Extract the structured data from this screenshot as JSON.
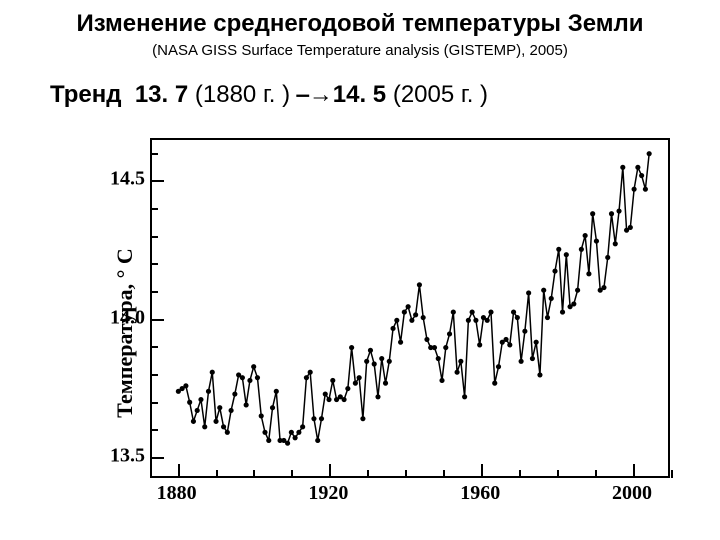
{
  "title": "Изменение среднегодовой температуры Земли",
  "subtitle": "(NASA GISS Surface Temperature analysis (GISTEMP), 2005)",
  "trend": {
    "label": "Тренд",
    "v1": "13. 7",
    "p1": "(1880 г. )",
    "arrow": "⎯→",
    "v2": "14. 5",
    "p2": "(2005 г. )"
  },
  "chart": {
    "type": "line",
    "ylabel": "Температура, ° С",
    "xlim": [
      1873,
      2010
    ],
    "ylim": [
      13.42,
      14.65
    ],
    "xticks_major": [
      1880,
      1920,
      1960,
      2000
    ],
    "xticks_minor": [
      1890,
      1900,
      1910,
      1930,
      1940,
      1950,
      1970,
      1980,
      1990,
      2010
    ],
    "yticks_major": [
      13.5,
      14.0,
      14.5
    ],
    "yticks_minor": [
      13.6,
      13.7,
      13.8,
      13.9,
      14.1,
      14.2,
      14.3,
      14.4,
      14.6
    ],
    "ytick_labels": [
      "13.5",
      "14.0",
      "14.5"
    ],
    "xtick_labels": [
      "1880",
      "1920",
      "1960",
      "2000"
    ],
    "line_color": "#000000",
    "marker_color": "#000000",
    "line_width": 1.5,
    "marker_radius": 2.6,
    "background_color": "#ffffff",
    "tick_fontsize": 20,
    "years": [
      1880,
      1881,
      1882,
      1883,
      1884,
      1885,
      1886,
      1887,
      1888,
      1889,
      1890,
      1891,
      1892,
      1893,
      1894,
      1895,
      1896,
      1897,
      1898,
      1899,
      1900,
      1901,
      1902,
      1903,
      1904,
      1905,
      1906,
      1907,
      1908,
      1909,
      1910,
      1911,
      1912,
      1913,
      1914,
      1915,
      1916,
      1917,
      1918,
      1919,
      1920,
      1921,
      1922,
      1923,
      1924,
      1925,
      1926,
      1927,
      1928,
      1929,
      1930,
      1931,
      1932,
      1933,
      1934,
      1935,
      1936,
      1937,
      1938,
      1939,
      1940,
      1941,
      1942,
      1943,
      1944,
      1945,
      1946,
      1947,
      1948,
      1949,
      1950,
      1951,
      1952,
      1953,
      1954,
      1955,
      1956,
      1957,
      1958,
      1959,
      1960,
      1961,
      1962,
      1963,
      1964,
      1965,
      1966,
      1967,
      1968,
      1969,
      1970,
      1971,
      1972,
      1973,
      1974,
      1975,
      1976,
      1977,
      1978,
      1979,
      1980,
      1981,
      1982,
      1983,
      1984,
      1985,
      1986,
      1987,
      1988,
      1989,
      1990,
      1991,
      1992,
      1993,
      1994,
      1995,
      1996,
      1997,
      1998,
      1999,
      2000,
      2001,
      2002,
      2003,
      2004,
      2005
    ],
    "temps": [
      13.73,
      13.74,
      13.75,
      13.69,
      13.62,
      13.66,
      13.7,
      13.6,
      13.73,
      13.8,
      13.62,
      13.67,
      13.6,
      13.58,
      13.66,
      13.72,
      13.79,
      13.78,
      13.68,
      13.77,
      13.82,
      13.78,
      13.64,
      13.58,
      13.55,
      13.67,
      13.73,
      13.55,
      13.55,
      13.54,
      13.58,
      13.56,
      13.58,
      13.6,
      13.78,
      13.8,
      13.63,
      13.55,
      13.63,
      13.72,
      13.7,
      13.77,
      13.7,
      13.71,
      13.7,
      13.74,
      13.89,
      13.76,
      13.78,
      13.63,
      13.84,
      13.88,
      13.83,
      13.71,
      13.85,
      13.76,
      13.84,
      13.96,
      13.99,
      13.91,
      14.02,
      14.04,
      13.99,
      14.01,
      14.12,
      14.0,
      13.92,
      13.89,
      13.89,
      13.85,
      13.77,
      13.89,
      13.94,
      14.02,
      13.8,
      13.84,
      13.71,
      13.99,
      14.02,
      13.99,
      13.9,
      14.0,
      13.99,
      14.02,
      13.76,
      13.82,
      13.91,
      13.92,
      13.9,
      14.02,
      14.0,
      13.84,
      13.95,
      14.09,
      13.85,
      13.91,
      13.79,
      14.1,
      14.0,
      14.07,
      14.17,
      14.25,
      14.02,
      14.23,
      14.04,
      14.05,
      14.1,
      14.25,
      14.3,
      14.16,
      14.38,
      14.28,
      14.1,
      14.11,
      14.22,
      14.38,
      14.27,
      14.39,
      14.55,
      14.32,
      14.33,
      14.47,
      14.55,
      14.52,
      14.47,
      14.6
    ]
  }
}
